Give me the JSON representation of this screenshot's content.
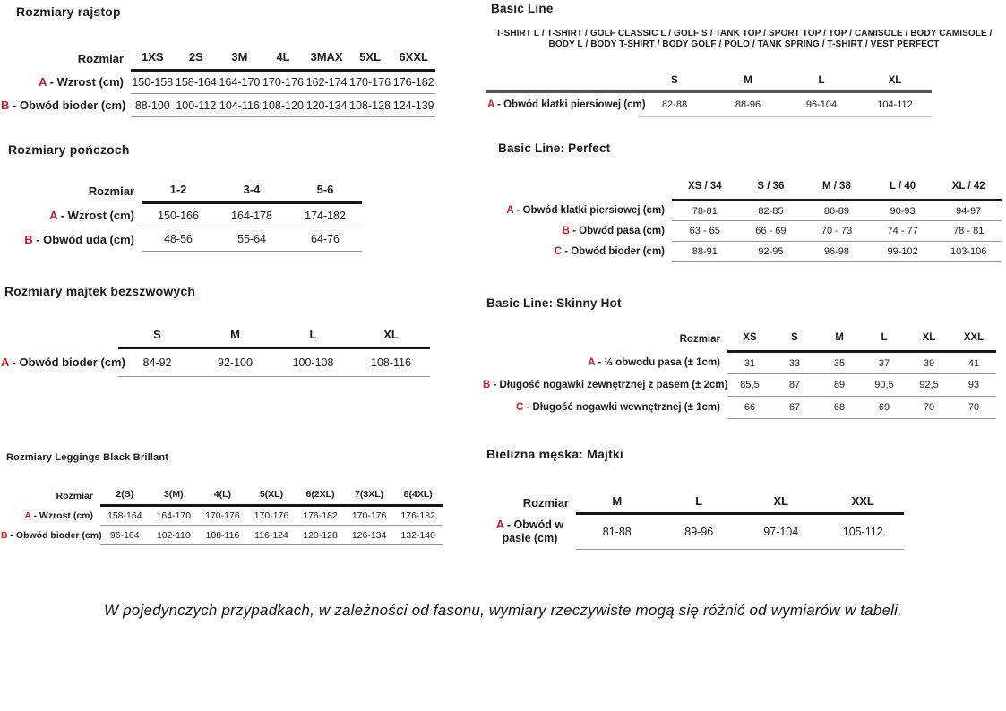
{
  "colors": {
    "accent_red": "#c01e2e",
    "text": "#1b1b1b"
  },
  "footer": "W pojedynczych przypadkach, w zależności od fasonu, wymiary rzeczywiste mogą się różnić od wymiarów w tabeli.",
  "tables": [
    {
      "title": "Rozmiary rajstop",
      "corner": "Rozmiar",
      "columns": [
        "1XS",
        "2S",
        "3M",
        "4L",
        "3MAX",
        "5XL",
        "6XXL"
      ],
      "rows": [
        {
          "letter": "A",
          "label": " - Wzrost (cm)",
          "values": [
            "150-158",
            "158-164",
            "164-170",
            "170-176",
            "162-174",
            "170-176",
            "176-182"
          ]
        },
        {
          "letter": "B",
          "label": " - Obwód bioder (cm)",
          "values": [
            "88-100",
            "100-112",
            "104-116",
            "108-120",
            "120-134",
            "108-128",
            "124-139"
          ]
        }
      ]
    },
    {
      "title": "Rozmiary pończoch",
      "corner": "Rozmiar",
      "columns": [
        "1-2",
        "3-4",
        "5-6"
      ],
      "rows": [
        {
          "letter": "A",
          "label": " - Wzrost (cm)",
          "values": [
            "150-166",
            "164-178",
            "174-182"
          ]
        },
        {
          "letter": "B",
          "label": " - Obwód uda (cm)",
          "values": [
            "48-56",
            "55-64",
            "64-76"
          ]
        }
      ]
    },
    {
      "title": "Rozmiary majtek bezszwowych",
      "corner": "",
      "columns": [
        "S",
        "M",
        "L",
        "XL"
      ],
      "rows": [
        {
          "letter": "A",
          "label": " - Obwód bioder (cm)",
          "values": [
            "84-92",
            "92-100",
            "100-108",
            "108-116"
          ]
        }
      ]
    },
    {
      "title": "Rozmiary Leggings Black Brillant",
      "corner": "Rozmiar",
      "columns": [
        "2(S)",
        "3(M)",
        "4(L)",
        "5(XL)",
        "6(2XL)",
        "7(3XL)",
        "8(4XL)"
      ],
      "rows": [
        {
          "letter": "A",
          "label": " - Wzrost (cm)",
          "values": [
            "158-164",
            "164-170",
            "170-176",
            "170-176",
            "176-182",
            "170-176",
            "176-182"
          ]
        },
        {
          "letter": "B",
          "label": " - Obwód bioder (cm)",
          "values": [
            "96-104",
            "102-110",
            "108-116",
            "116-124",
            "120-128",
            "126-134",
            "132-140"
          ]
        }
      ]
    },
    {
      "title": "Basic Line",
      "products": "T-SHIRT L / T-SHIRT / GOLF CLASSIC L / GOLF S / TANK TOP / SPORT TOP / TOP / CAMISOLE / BODY CAMISOLE / BODY L / BODY T-SHIRT / BODY GOLF / POLO / TANK SPRING / T-SHIRT / VEST PERFECT",
      "corner": "",
      "columns": [
        "S",
        "M",
        "L",
        "XL"
      ],
      "rows": [
        {
          "letter": "A",
          "label": " - Obwód klatki piersiowej (cm)",
          "values": [
            "82-88",
            "88-96",
            "96-104",
            "104-112"
          ]
        }
      ]
    },
    {
      "title": "Basic Line: Perfect",
      "corner": "",
      "columns": [
        "XS / 34",
        "S / 36",
        "M / 38",
        "L / 40",
        "XL / 42"
      ],
      "rows": [
        {
          "letter": "A",
          "label": " - Obwód klatki piersiowej (cm)",
          "values": [
            "78-81",
            "82-85",
            "86-89",
            "90-93",
            "94-97"
          ]
        },
        {
          "letter": "B",
          "label": " - Obwód pasa (cm)",
          "values": [
            "63 - 65",
            "66 - 69",
            "70 - 73",
            "74 - 77",
            "78 - 81"
          ]
        },
        {
          "letter": "C",
          "label": " - Obwód bioder (cm)",
          "values": [
            "88-91",
            "92-95",
            "96-98",
            "99-102",
            "103-106"
          ]
        }
      ]
    },
    {
      "title": "Basic Line: Skinny Hot",
      "corner": "Rozmiar",
      "columns": [
        "XS",
        "S",
        "M",
        "L",
        "XL",
        "XXL"
      ],
      "rows": [
        {
          "letter": "A",
          "label": " - ½ obwodu pasa (± 1cm)",
          "values": [
            "31",
            "33",
            "35",
            "37",
            "39",
            "41"
          ]
        },
        {
          "letter": "B",
          "label": " - Długość nogawki zewnętrznej z pasem (± 2cm)",
          "values": [
            "85,5",
            "87",
            "89",
            "90,5",
            "92,5",
            "93"
          ]
        },
        {
          "letter": "C",
          "label": " - Długość nogawki wewnętrznej (± 1cm)",
          "values": [
            "66",
            "67",
            "68",
            "69",
            "70",
            "70"
          ]
        }
      ]
    },
    {
      "title": "Bielizna męska: Majtki",
      "corner": "Rozmiar",
      "columns": [
        "M",
        "L",
        "XL",
        "XXL"
      ],
      "rows": [
        {
          "letter": "A",
          "label": " - Obwód w pasie (cm)",
          "values": [
            "81-88",
            "89-96",
            "97-104",
            "105-112"
          ]
        }
      ]
    }
  ]
}
